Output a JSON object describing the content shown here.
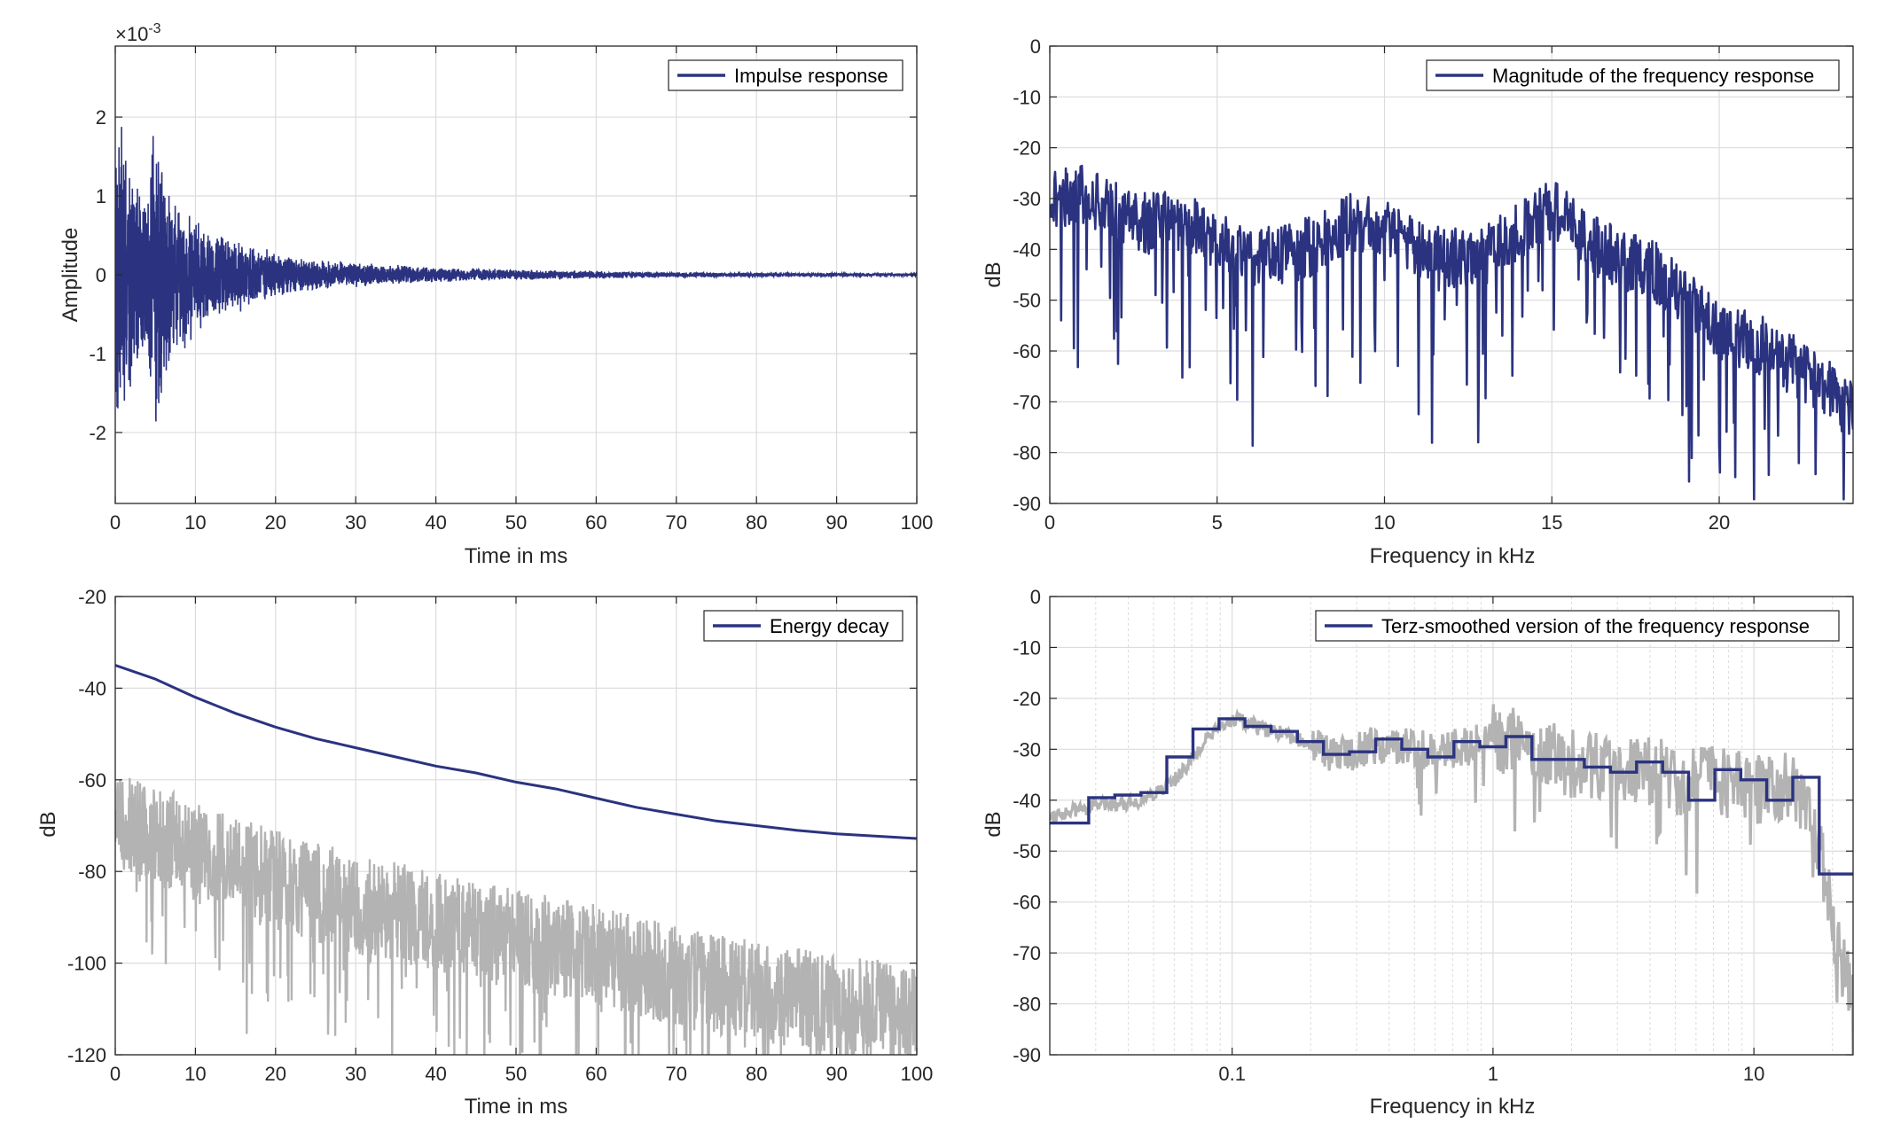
{
  "colors": {
    "series": "#2b3380",
    "trace": "#b3b3b3",
    "grid": "#dcdcdc",
    "axis": "#262626"
  },
  "chart_data": [
    {
      "type": "line",
      "legend": [
        "Impulse response"
      ],
      "xlabel": "Time in ms",
      "ylabel": "Amplitude",
      "exponent_label": "×10",
      "exponent_power": "-3",
      "xlim": [
        0,
        100
      ],
      "ylim": [
        -2.9,
        2.9
      ],
      "xticks": [
        0,
        10,
        20,
        30,
        40,
        50,
        60,
        70,
        80,
        90,
        100
      ],
      "yticks": [
        -2,
        -1,
        0,
        1,
        2
      ],
      "grid": true,
      "legend_position": "top-right",
      "series": [
        {
          "x": [
            0,
            0.3,
            0.6,
            1,
            1.5,
            2,
            3,
            4,
            5,
            5.5,
            6,
            7,
            8,
            10,
            12,
            15,
            20,
            25,
            30,
            40,
            50,
            60,
            70,
            80,
            90,
            100
          ],
          "envelope": [
            1.4,
            2.65,
            2.55,
            2.2,
            1.6,
            1.4,
            1.3,
            1.2,
            2.35,
            1.9,
            1.4,
            1.15,
            1.0,
            0.85,
            0.6,
            0.5,
            0.3,
            0.2,
            0.16,
            0.1,
            0.07,
            0.05,
            0.035,
            0.03,
            0.025,
            0.02
          ]
        }
      ]
    },
    {
      "type": "line",
      "legend": [
        "Magnitude of the frequency response"
      ],
      "xlabel": "Frequency in kHz",
      "ylabel": "dB",
      "xlim": [
        0,
        24
      ],
      "ylim": [
        -90,
        0
      ],
      "xticks": [
        0,
        5,
        10,
        15,
        20
      ],
      "yticks": [
        0,
        -10,
        -20,
        -30,
        -40,
        -50,
        -60,
        -70,
        -80,
        -90
      ],
      "grid": true,
      "legend_position": "top-right",
      "series": [
        {
          "x": [
            0,
            1,
            2,
            3,
            4,
            5,
            6,
            7,
            8,
            9,
            10,
            11,
            12,
            13,
            14,
            15,
            16,
            17,
            18,
            19,
            20,
            21,
            22,
            23,
            24
          ],
          "values": [
            -30,
            -29,
            -33,
            -35,
            -34,
            -38,
            -42,
            -41,
            -39,
            -35,
            -36,
            -40,
            -42,
            -41,
            -37,
            -32,
            -38,
            -42,
            -44,
            -50,
            -56,
            -58,
            -62,
            -66,
            -72
          ]
        }
      ]
    },
    {
      "type": "line",
      "legend": [
        "Energy decay"
      ],
      "xlabel": "Time in ms",
      "ylabel": "dB",
      "xlim": [
        0,
        100
      ],
      "ylim": [
        -120,
        -20
      ],
      "xticks": [
        0,
        10,
        20,
        30,
        40,
        50,
        60,
        70,
        80,
        90,
        100
      ],
      "yticks": [
        -20,
        -40,
        -60,
        -80,
        -100,
        -120
      ],
      "grid": true,
      "legend_position": "top-right",
      "series": [
        {
          "x": [
            0,
            5,
            10,
            15,
            20,
            25,
            30,
            35,
            40,
            45,
            50,
            55,
            60,
            65,
            70,
            75,
            80,
            85,
            90,
            95,
            100
          ],
          "values": [
            -35,
            -38,
            -42,
            -45.5,
            -48.5,
            -51,
            -53,
            -55,
            -57,
            -58.5,
            -60.5,
            -62,
            -64,
            -66,
            -67.5,
            -69,
            -70,
            -71,
            -71.8,
            -72.3,
            -72.8
          ]
        },
        {
          "name": "trace",
          "x": [
            0,
            10,
            20,
            30,
            40,
            50,
            60,
            70,
            80,
            90,
            100
          ],
          "center": [
            -68,
            -76,
            -82,
            -87,
            -91,
            -95,
            -98,
            -103,
            -106,
            -109,
            -111
          ]
        }
      ]
    },
    {
      "type": "line",
      "legend": [
        "Terz-smoothed version of the frequency response"
      ],
      "xlabel": "Frequency in kHz",
      "ylabel": "dB",
      "xscale": "log",
      "xlim": [
        0.02,
        24
      ],
      "ylim": [
        -90,
        0
      ],
      "xticks": [
        0.1,
        1,
        10
      ],
      "xticklabels": [
        "0.1",
        "1",
        "10"
      ],
      "yticks": [
        0,
        -10,
        -20,
        -30,
        -40,
        -50,
        -60,
        -70,
        -80,
        -90
      ],
      "grid": true,
      "legend_position": "top-right",
      "series": [
        {
          "edges": [
            0.02,
            0.0282,
            0.0355,
            0.0447,
            0.0562,
            0.0708,
            0.0891,
            0.112,
            0.141,
            0.178,
            0.224,
            0.282,
            0.355,
            0.447,
            0.562,
            0.708,
            0.891,
            1.12,
            1.41,
            1.78,
            2.24,
            2.82,
            3.55,
            4.47,
            5.62,
            7.08,
            8.91,
            11.2,
            14.1,
            17.8,
            24
          ],
          "values": [
            -44.5,
            -39.5,
            -39,
            -38.5,
            -31.5,
            -26,
            -24,
            -25.5,
            -26.5,
            -28.5,
            -31,
            -30.5,
            -28,
            -30,
            -31.5,
            -28.5,
            -29.5,
            -27.5,
            -32,
            -32,
            -33.5,
            -34.5,
            -32.5,
            -34.5,
            -40,
            -34,
            -36,
            -40,
            -35.5,
            -54.5
          ]
        },
        {
          "name": "trace",
          "x": [
            0.02,
            0.03,
            0.045,
            0.06,
            0.08,
            0.1,
            0.13,
            0.18,
            0.25,
            0.35,
            0.5,
            0.7,
            1,
            1.3,
            2,
            3,
            4,
            5,
            7,
            10,
            13,
            16,
            18,
            20,
            24
          ],
          "values": [
            -43,
            -41,
            -40,
            -36,
            -28,
            -24,
            -26,
            -28,
            -31,
            -29,
            -30,
            -30,
            -28,
            -29,
            -33,
            -33,
            -34,
            -36,
            -36,
            -38,
            -37,
            -40,
            -50,
            -65,
            -80
          ]
        }
      ]
    }
  ]
}
